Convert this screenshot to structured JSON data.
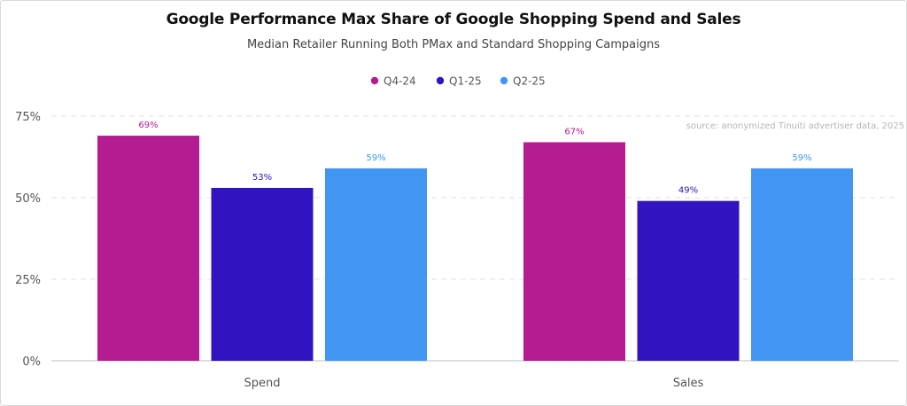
{
  "chart_data": {
    "type": "bar",
    "title": "Google Performance Max Share of Google Shopping Spend and Sales",
    "subtitle": "Median Retailer Running Both PMax and Standard Shopping Campaigns",
    "categories": [
      "Spend",
      "Sales"
    ],
    "series": [
      {
        "name": "Q4-24",
        "color": "#b51c92",
        "values": [
          69,
          67
        ],
        "labels": [
          "69%",
          "67%"
        ]
      },
      {
        "name": "Q1-25",
        "color": "#3113bf",
        "values": [
          53,
          49
        ],
        "labels": [
          "53%",
          "49%"
        ]
      },
      {
        "name": "Q2-25",
        "color": "#4096f0",
        "values": [
          59,
          59
        ],
        "labels": [
          "59%",
          "59%"
        ]
      }
    ],
    "ylim": [
      0,
      75
    ],
    "yticks": [
      0,
      25,
      50,
      75
    ],
    "ytick_labels": [
      "0%",
      "25%",
      "50%",
      "75%"
    ],
    "grid": true,
    "legend_position": "top-center",
    "annotation": "source: anonymized Tinuiti advertiser data, 2025"
  }
}
